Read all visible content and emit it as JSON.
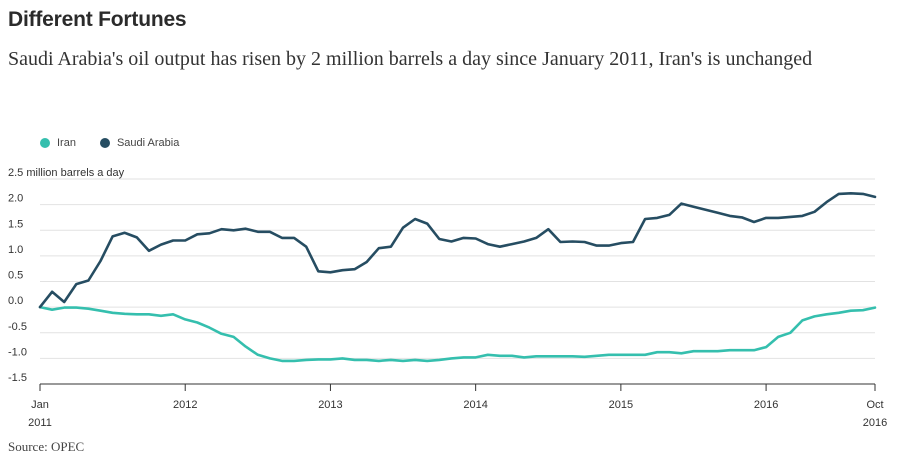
{
  "title": "Different Fortunes",
  "subtitle": "Saudi Arabia's oil output has risen by 2 million barrels a day since January 2011, Iran's is unchanged",
  "source": "Source: OPEC",
  "colors": {
    "iran": "#35bfae",
    "saudi": "#264d62",
    "grid": "#e2e2e2",
    "axis": "#333333"
  },
  "chart_data": {
    "type": "line",
    "ylabel": "million barrels a day",
    "ylim": [
      -1.5,
      2.5
    ],
    "y_ticks": [
      "2.5",
      "2.0",
      "1.5",
      "1.0",
      "0.5",
      "0.0",
      "-0.5",
      "-1.0",
      "-1.5"
    ],
    "y_tick_values": [
      2.5,
      2.0,
      1.5,
      1.0,
      0.5,
      0.0,
      -0.5,
      -1.0,
      -1.5
    ],
    "y_top_unit": "million barrels a day",
    "x_ticks": [
      {
        "month": 0,
        "line1": "Jan",
        "line2": "2011"
      },
      {
        "month": 12,
        "line1": "2012",
        "line2": ""
      },
      {
        "month": 24,
        "line1": "2013",
        "line2": ""
      },
      {
        "month": 36,
        "line1": "2014",
        "line2": ""
      },
      {
        "month": 48,
        "line1": "2015",
        "line2": ""
      },
      {
        "month": 60,
        "line1": "2016",
        "line2": ""
      },
      {
        "month": 69,
        "line1": "Oct",
        "line2": "2016"
      }
    ],
    "xlim_months": [
      0,
      69
    ],
    "grid": true,
    "legend_position": "top-left",
    "series": [
      {
        "name": "Iran",
        "color": "#35bfae",
        "values": [
          0.0,
          -0.05,
          -0.01,
          -0.01,
          -0.03,
          -0.07,
          -0.11,
          -0.13,
          -0.14,
          -0.14,
          -0.17,
          -0.14,
          -0.24,
          -0.3,
          -0.4,
          -0.52,
          -0.58,
          -0.77,
          -0.93,
          -1.0,
          -1.05,
          -1.05,
          -1.03,
          -1.02,
          -1.02,
          -1.0,
          -1.03,
          -1.03,
          -1.05,
          -1.03,
          -1.05,
          -1.03,
          -1.05,
          -1.03,
          -1.0,
          -0.98,
          -0.98,
          -0.93,
          -0.95,
          -0.95,
          -0.98,
          -0.96,
          -0.96,
          -0.96,
          -0.96,
          -0.97,
          -0.95,
          -0.93,
          -0.93,
          -0.93,
          -0.93,
          -0.88,
          -0.88,
          -0.9,
          -0.86,
          -0.86,
          -0.86,
          -0.84,
          -0.84,
          -0.84,
          -0.78,
          -0.58,
          -0.5,
          -0.26,
          -0.18,
          -0.14,
          -0.11,
          -0.07,
          -0.06,
          -0.01
        ]
      },
      {
        "name": "Saudi Arabia",
        "color": "#264d62",
        "values": [
          0.0,
          0.3,
          0.1,
          0.45,
          0.52,
          0.9,
          1.38,
          1.45,
          1.36,
          1.1,
          1.22,
          1.3,
          1.3,
          1.42,
          1.44,
          1.52,
          1.5,
          1.53,
          1.47,
          1.47,
          1.35,
          1.35,
          1.18,
          0.7,
          0.68,
          0.72,
          0.74,
          0.88,
          1.15,
          1.18,
          1.55,
          1.72,
          1.63,
          1.33,
          1.28,
          1.35,
          1.34,
          1.23,
          1.18,
          1.23,
          1.28,
          1.35,
          1.52,
          1.27,
          1.28,
          1.27,
          1.2,
          1.2,
          1.25,
          1.27,
          1.72,
          1.74,
          1.8,
          2.02,
          1.96,
          1.9,
          1.84,
          1.78,
          1.75,
          1.66,
          1.74,
          1.74,
          1.76,
          1.78,
          1.86,
          2.05,
          2.21,
          2.22,
          2.21,
          2.15
        ]
      }
    ]
  }
}
